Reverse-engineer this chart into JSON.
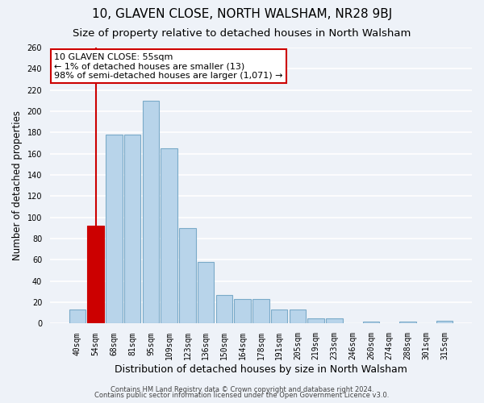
{
  "title": "10, GLAVEN CLOSE, NORTH WALSHAM, NR28 9BJ",
  "subtitle": "Size of property relative to detached houses in North Walsham",
  "xlabel": "Distribution of detached houses by size in North Walsham",
  "ylabel": "Number of detached properties",
  "footer_line1": "Contains HM Land Registry data © Crown copyright and database right 2024.",
  "footer_line2": "Contains public sector information licensed under the Open Government Licence v3.0.",
  "bin_labels": [
    "40sqm",
    "54sqm",
    "68sqm",
    "81sqm",
    "95sqm",
    "109sqm",
    "123sqm",
    "136sqm",
    "150sqm",
    "164sqm",
    "178sqm",
    "191sqm",
    "205sqm",
    "219sqm",
    "233sqm",
    "246sqm",
    "260sqm",
    "274sqm",
    "288sqm",
    "301sqm",
    "315sqm"
  ],
  "bar_values": [
    13,
    92,
    178,
    178,
    210,
    165,
    90,
    58,
    27,
    23,
    23,
    13,
    13,
    5,
    5,
    0,
    2,
    0,
    2,
    0,
    3
  ],
  "bar_color": "#b8d4ea",
  "bar_edge_color": "#7aaac8",
  "highlight_bar_index": 1,
  "highlight_color": "#cc0000",
  "highlight_edge_color": "#cc0000",
  "red_line_x": 1.5,
  "annotation_title": "10 GLAVEN CLOSE: 55sqm",
  "annotation_line1": "← 1% of detached houses are smaller (13)",
  "annotation_line2": "98% of semi-detached houses are larger (1,071) →",
  "annotation_box_color": "#ffffff",
  "annotation_box_edge": "#cc0000",
  "ylim": [
    0,
    260
  ],
  "yticks": [
    0,
    20,
    40,
    60,
    80,
    100,
    120,
    140,
    160,
    180,
    200,
    220,
    240,
    260
  ],
  "background_color": "#eef2f8",
  "grid_color": "#ffffff",
  "title_fontsize": 11,
  "subtitle_fontsize": 9.5,
  "xlabel_fontsize": 9,
  "ylabel_fontsize": 8.5,
  "tick_fontsize": 7,
  "annotation_fontsize": 8,
  "footer_fontsize": 6
}
